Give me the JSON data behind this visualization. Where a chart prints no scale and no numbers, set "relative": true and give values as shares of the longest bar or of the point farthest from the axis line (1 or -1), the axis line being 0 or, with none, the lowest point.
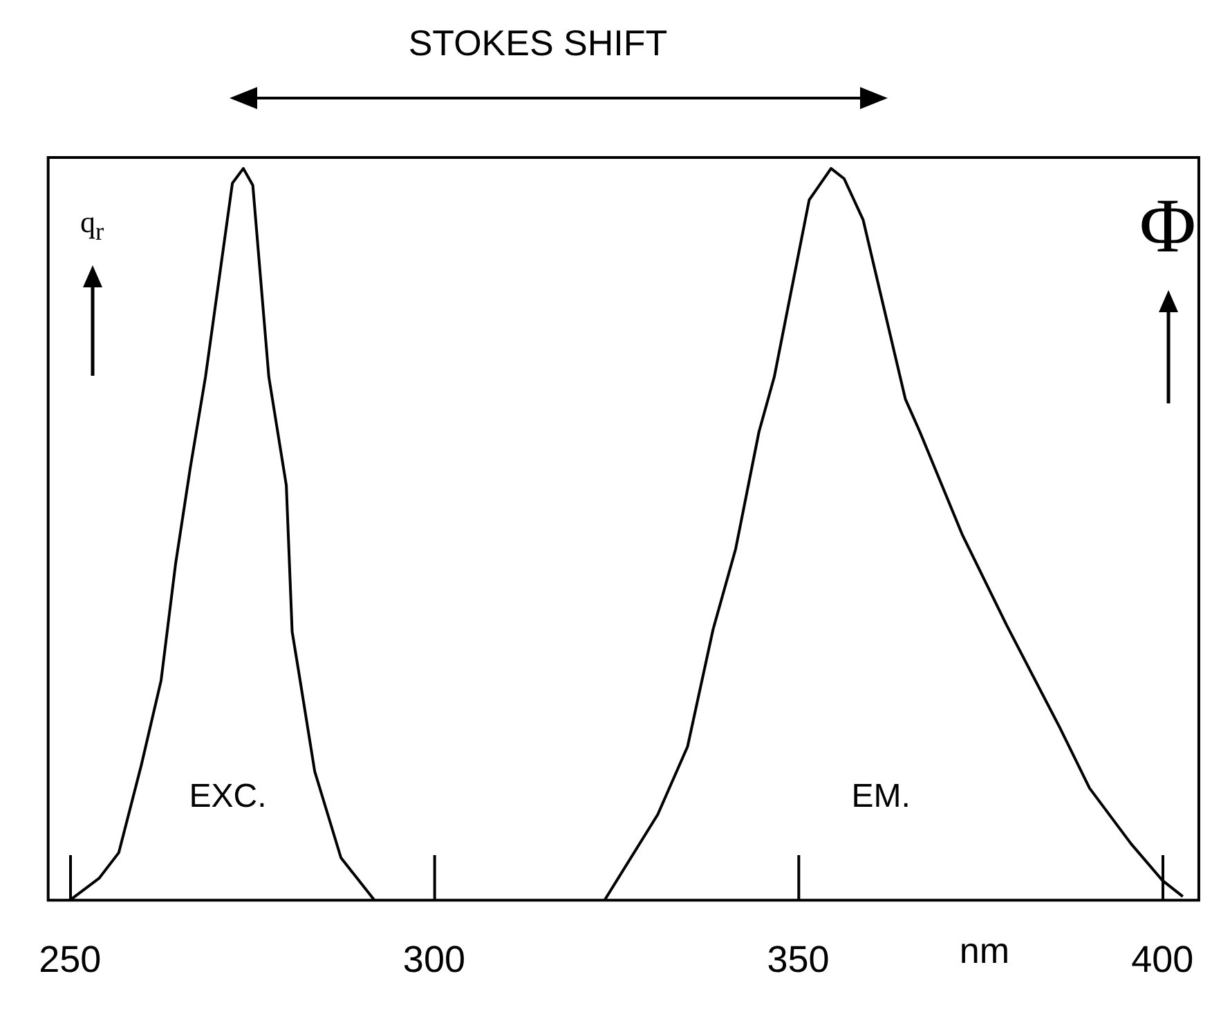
{
  "chart_data": {
    "type": "line",
    "title": "STOKES SHIFT",
    "xlabel": "nm",
    "ylabel": "q$_{r}$",
    "y2label": "Φ",
    "relative": true,
    "xlim": [
      247,
      405
    ],
    "xticks": [
      250,
      300,
      350,
      400
    ],
    "marker": "none",
    "line_style": "solid",
    "annotations": [
      "EXC.",
      "EM."
    ],
    "series": [
      {
        "color": "#000000",
        "x": [
          250,
          254,
          256.7,
          259.8,
          262.5,
          264.5,
          266.5,
          268.6,
          272.3,
          273.8,
          275.1,
          277.3,
          279.7,
          280.5,
          281.6,
          283.6,
          287.2,
          291.8
        ],
        "values": [
          0,
          0.03,
          0.065,
          0.185,
          0.3,
          0.46,
          0.59,
          0.715,
          0.98,
          1,
          0.977,
          0.715,
          0.567,
          0.367,
          0.3,
          0.176,
          0.058,
          0
        ]
      },
      {
        "color": "#000000",
        "x": [
          323.4,
          330.7,
          334.8,
          338.3,
          341.4,
          344.6,
          346.7,
          351.5,
          354.5,
          356.3,
          358.9,
          364.7,
          366.7,
          372.5,
          378.6,
          385.9,
          390,
          395.7,
          400,
          402.8
        ],
        "values": [
          0,
          0.117,
          0.21,
          0.37,
          0.48,
          0.64,
          0.715,
          0.957,
          1,
          0.986,
          0.93,
          0.685,
          0.64,
          0.5,
          0.376,
          0.236,
          0.153,
          0.077,
          0.027,
          0.005
        ]
      }
    ]
  }
}
